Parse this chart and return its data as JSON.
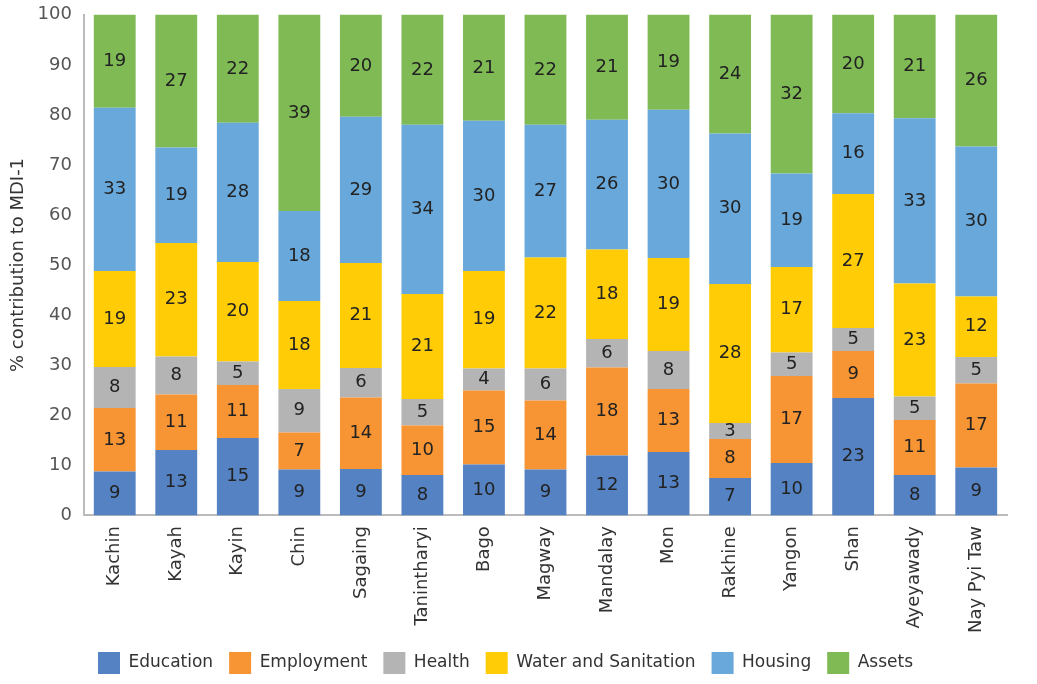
{
  "chart_data": {
    "type": "bar",
    "stacked": true,
    "ylabel": "% contribution to MDI-1",
    "categories": [
      "Kachin",
      "Kayah",
      "Kayin",
      "Chin",
      "Sagaing",
      "Tanintharyi",
      "Bago",
      "Magway",
      "Mandalay",
      "Mon",
      "Rakhine",
      "Yangon",
      "Shan",
      "Ayeyawady",
      "Nay Pyi Taw"
    ],
    "series": [
      {
        "name": "Education",
        "color": "#5582c2",
        "values": [
          8.7,
          13.0,
          15.4,
          9.1,
          9.2,
          8.0,
          10.1,
          9.1,
          11.9,
          12.6,
          7.4,
          10.4,
          23.4,
          8.0,
          9.5
        ],
        "value_labels": [
          "9",
          "13",
          "15",
          "9",
          "9",
          "8",
          "10",
          "9",
          "12",
          "13",
          "7",
          "10",
          "23",
          "8",
          "9"
        ]
      },
      {
        "name": "Employment",
        "color": "#f79433",
        "values": [
          12.7,
          11.1,
          10.6,
          7.4,
          14.3,
          9.9,
          14.8,
          13.8,
          17.6,
          12.6,
          7.8,
          17.4,
          9.4,
          11.0,
          16.8
        ],
        "value_labels": [
          "13",
          "11",
          "11",
          "7",
          "14",
          "10",
          "15",
          "14",
          "18",
          "13",
          "8",
          "17",
          "9",
          "11",
          "17"
        ]
      },
      {
        "name": "Health",
        "color": "#b4b4b4",
        "values": [
          8.2,
          7.6,
          4.7,
          8.7,
          5.9,
          5.3,
          4.4,
          6.4,
          5.7,
          7.6,
          3.2,
          4.7,
          4.6,
          4.7,
          5.3
        ],
        "value_labels": [
          "8",
          "8",
          "5",
          "9",
          "6",
          "5",
          "4",
          "6",
          "6",
          "8",
          "3",
          "5",
          "5",
          "5",
          "5"
        ]
      },
      {
        "name": "Water and Sanitation",
        "color": "#ffcc05",
        "values": [
          19.2,
          22.7,
          19.9,
          17.6,
          21.0,
          21.0,
          19.5,
          22.2,
          17.9,
          18.6,
          27.8,
          17.1,
          26.8,
          22.6,
          12.1
        ],
        "value_labels": [
          "19",
          "23",
          "20",
          "18",
          "21",
          "21",
          "19",
          "22",
          "18",
          "19",
          "28",
          "17",
          "27",
          "23",
          "12"
        ]
      },
      {
        "name": "Housing",
        "color": "#69a8da",
        "values": [
          32.6,
          19.1,
          27.8,
          18.0,
          29.2,
          33.8,
          30.0,
          26.5,
          25.9,
          29.6,
          30.1,
          18.7,
          16.1,
          33.0,
          30.0
        ],
        "value_labels": [
          "33",
          "19",
          "28",
          "18",
          "29",
          "34",
          "30",
          "27",
          "26",
          "30",
          "30",
          "19",
          "16",
          "33",
          "30"
        ]
      },
      {
        "name": "Assets",
        "color": "#7fba55",
        "values": [
          18.6,
          26.5,
          21.6,
          39.2,
          20.4,
          22.0,
          21.2,
          22.0,
          21.0,
          19.0,
          23.7,
          31.7,
          19.7,
          20.7,
          26.3
        ],
        "value_labels": [
          "19",
          "27",
          "22",
          "39",
          "20",
          "22",
          "21",
          "22",
          "21",
          "19",
          "24",
          "32",
          "20",
          "21",
          "26"
        ]
      }
    ],
    "ylim": [
      0,
      100
    ],
    "yticks": [
      0,
      10,
      20,
      30,
      40,
      50,
      60,
      70,
      80,
      90,
      100
    ],
    "grid": false,
    "legend": "bottom"
  }
}
